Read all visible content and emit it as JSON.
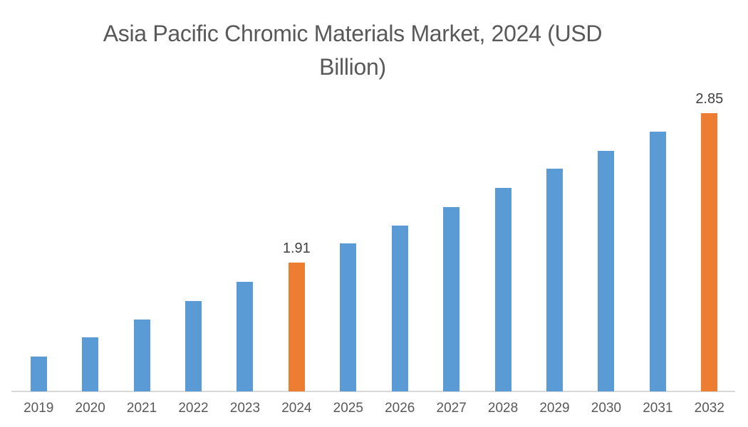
{
  "title": "Asia Pacific Chromic Materials Market, 2024 (USD Billion)",
  "colors": {
    "bar_default": "#5B9BD5",
    "bar_highlight": "#ED7D31",
    "title_text": "#595959",
    "axis_text": "#595959",
    "data_label_text": "#404040",
    "axis_line": "#D9D9D9",
    "background": "#FFFFFF"
  },
  "chart_data": {
    "type": "bar",
    "title": "Asia Pacific Chromic Materials Market, 2024 (USD Billion)",
    "xlabel": "",
    "ylabel": "",
    "ylim": [
      1.1,
      3.0
    ],
    "grid": false,
    "legend": "none",
    "y_axis_visible": false,
    "categories": [
      "2019",
      "2020",
      "2021",
      "2022",
      "2023",
      "2024",
      "2025",
      "2026",
      "2027",
      "2028",
      "2029",
      "2030",
      "2031",
      "2032"
    ],
    "values": [
      1.32,
      1.44,
      1.55,
      1.67,
      1.79,
      1.91,
      2.03,
      2.14,
      2.26,
      2.38,
      2.5,
      2.61,
      2.73,
      2.85
    ],
    "data_labels": {
      "2024": "1.91",
      "2032": "2.85"
    },
    "highlighted_categories": [
      "2024",
      "2032"
    ]
  }
}
